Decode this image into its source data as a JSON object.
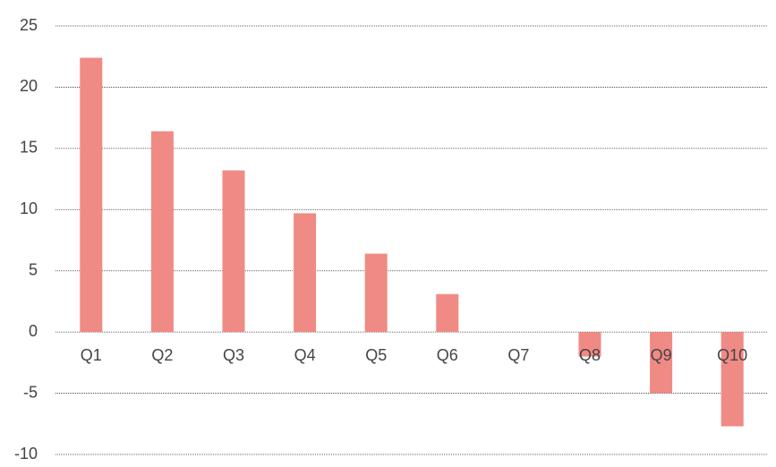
{
  "chart_data": {
    "type": "bar",
    "categories": [
      "Q1",
      "Q2",
      "Q3",
      "Q4",
      "Q5",
      "Q6",
      "Q7",
      "Q8",
      "Q9",
      "Q10"
    ],
    "values": [
      22.4,
      16.4,
      13.2,
      9.7,
      6.4,
      3.1,
      0,
      -2.0,
      -5.0,
      -7.7
    ],
    "color": "#f08a84",
    "ylim": [
      -10,
      25
    ],
    "yticks": [
      -10,
      -5,
      0,
      5,
      10,
      15,
      20,
      25
    ],
    "grid": true
  }
}
